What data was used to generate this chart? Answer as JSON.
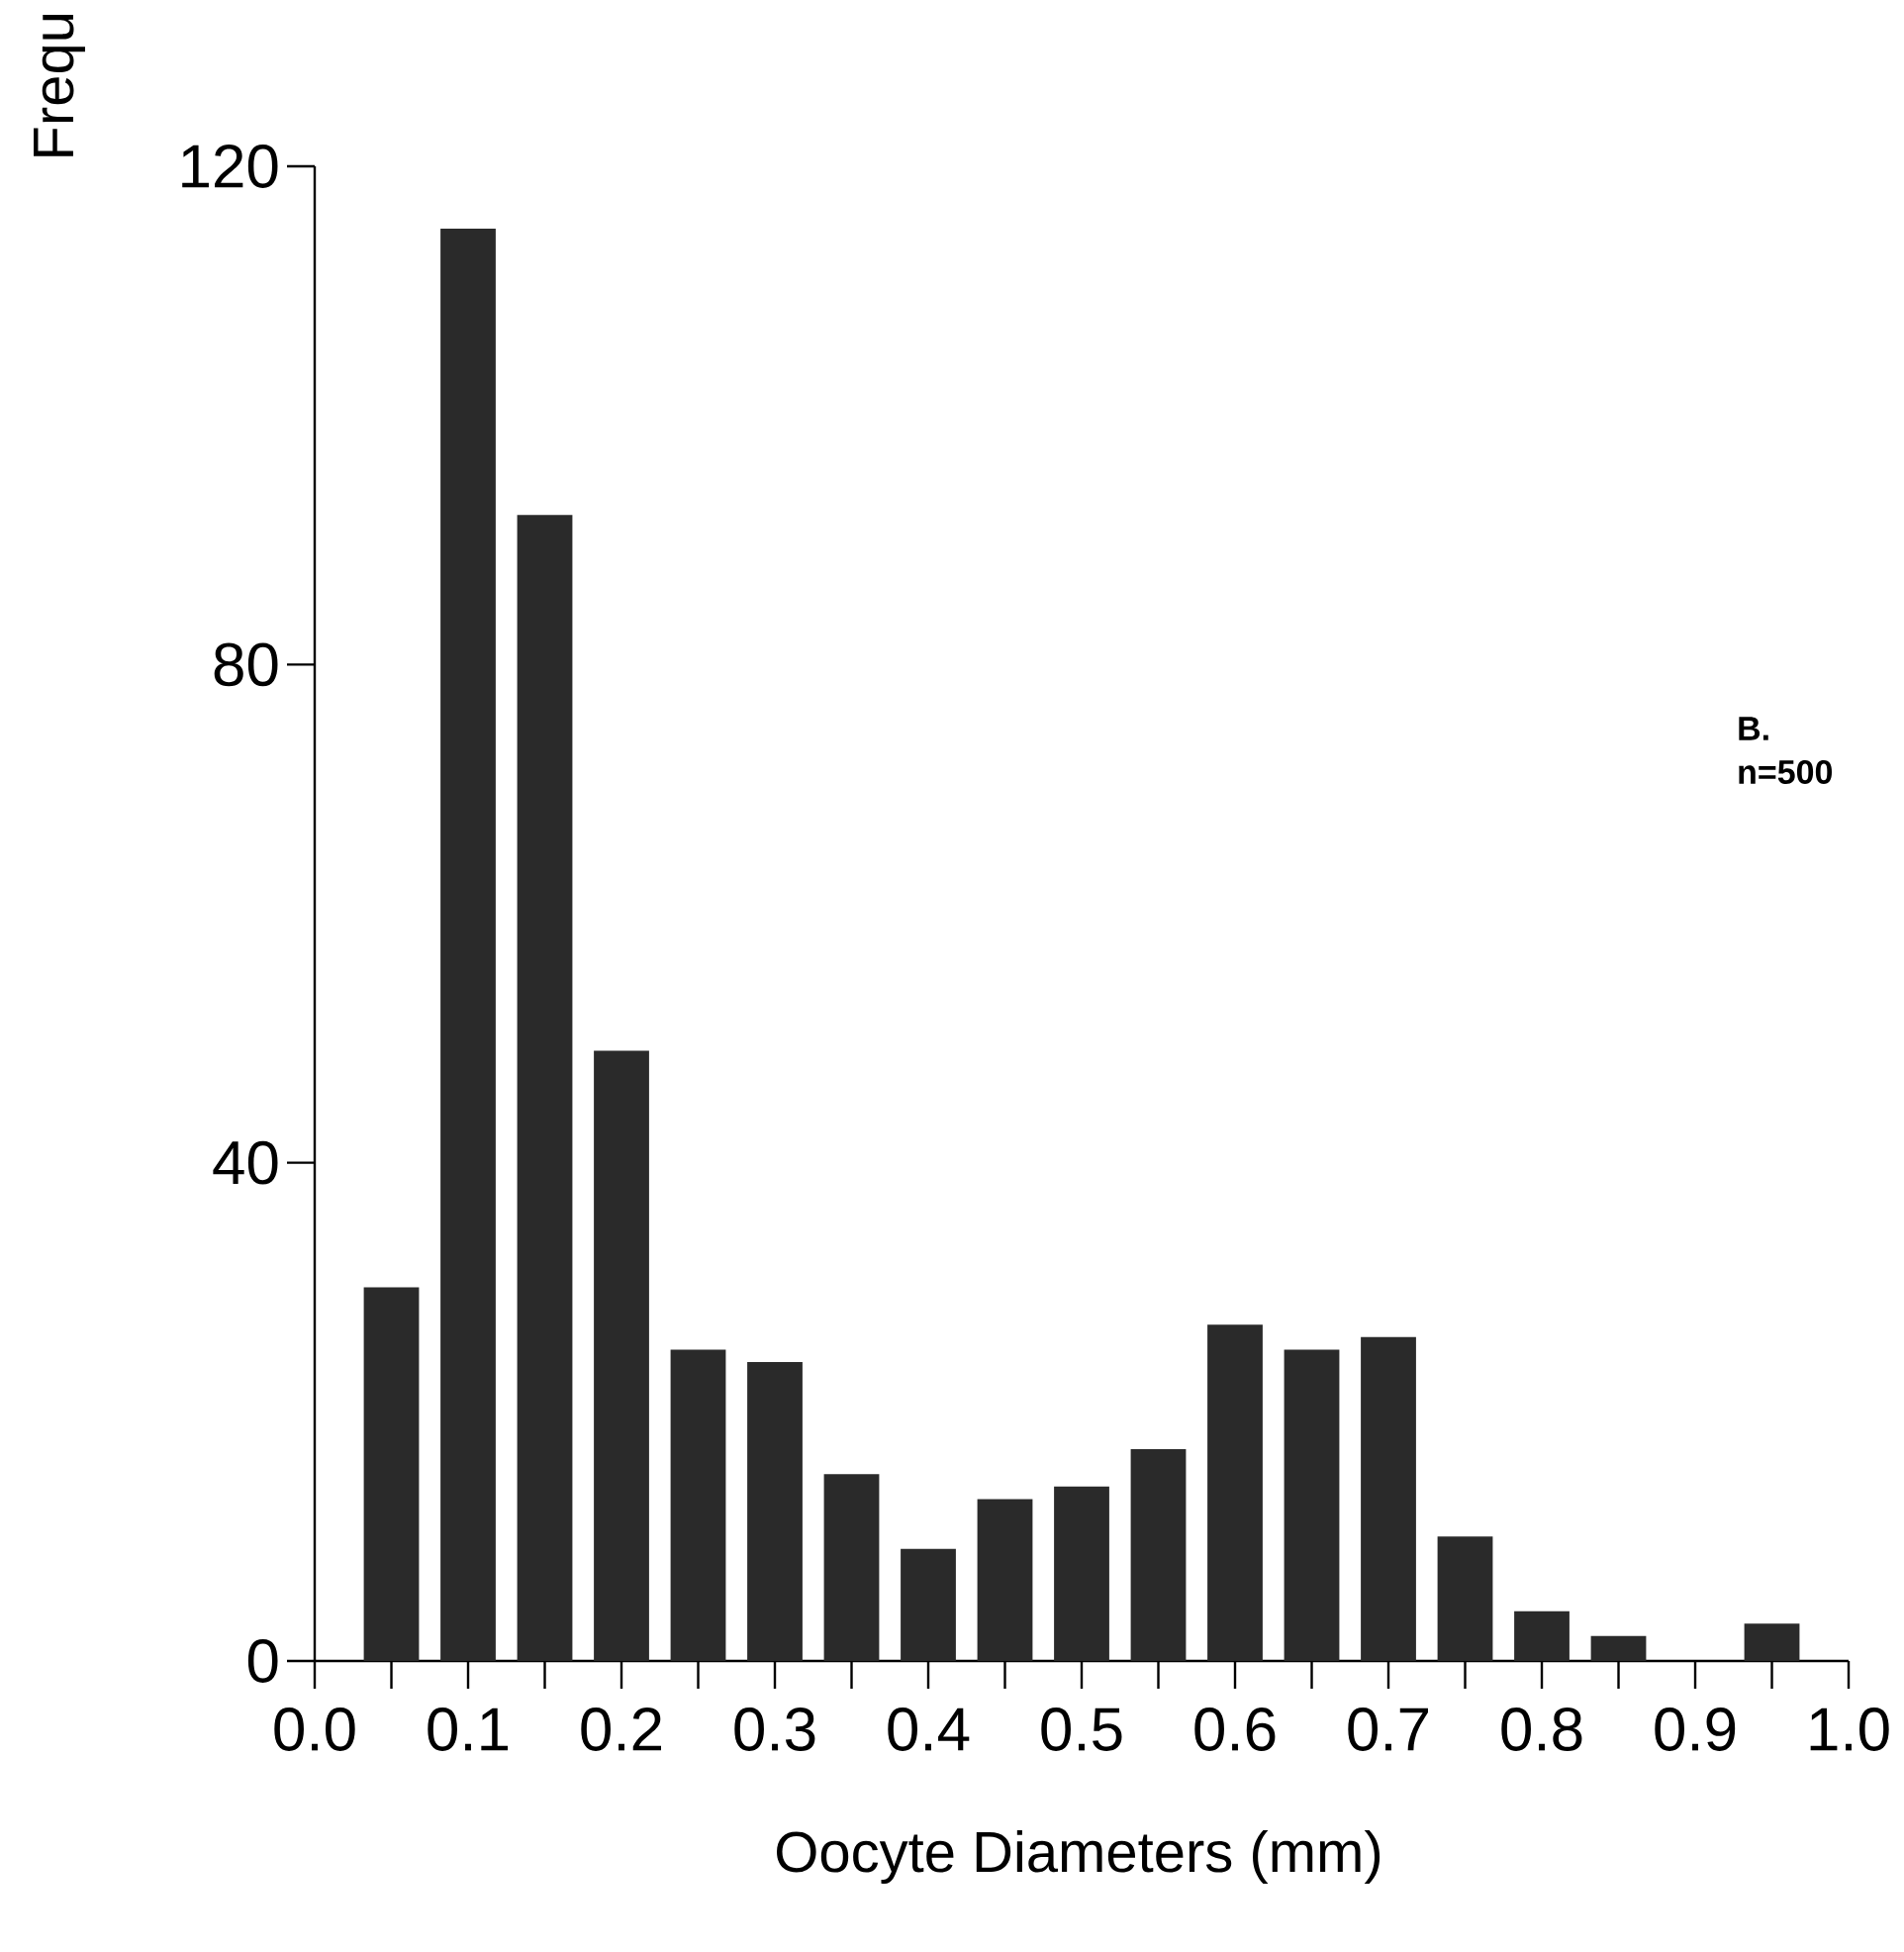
{
  "chart_data": {
    "type": "histogram",
    "xlabel": "Oocyte Diameters (mm)",
    "ylabel": "Frequ",
    "annotations": [
      "B.",
      "n=500"
    ],
    "bins": [
      0.025,
      0.075,
      0.125,
      0.175,
      0.225,
      0.275,
      0.325,
      0.375,
      0.425,
      0.475,
      0.525,
      0.575,
      0.625,
      0.675,
      0.725,
      0.775,
      0.825,
      0.875,
      0.925,
      0.975
    ],
    "values": [
      30,
      115,
      92,
      49,
      25,
      24,
      15,
      9,
      13,
      14,
      17,
      27,
      25,
      26,
      10,
      4,
      2,
      0,
      3
    ],
    "color": "#2a2a2a",
    "xlim": [
      0,
      1.0
    ],
    "ylim": [
      0,
      120
    ],
    "xticks": [
      {
        "value": 0,
        "label": "0.0"
      },
      {
        "value": 0.05,
        "label": null
      },
      0.1,
      {
        "value": 0.15,
        "label": null
      },
      0.2,
      {
        "value": 0.25,
        "label": null
      },
      0.3,
      {
        "value": 0.35,
        "label": null
      },
      0.4,
      {
        "value": 0.45,
        "label": null
      },
      0.5,
      {
        "value": 0.55,
        "label": null
      },
      0.6,
      {
        "value": 0.65,
        "label": null
      },
      0.7,
      {
        "value": 0.75,
        "label": null
      },
      0.8,
      {
        "value": 0.85,
        "label": null
      },
      0.9,
      {
        "value": 0.95,
        "label": null
      },
      {
        "value": 1.0,
        "label": "1.0"
      }
    ],
    "yticks": [
      0,
      40,
      80,
      120
    ]
  }
}
